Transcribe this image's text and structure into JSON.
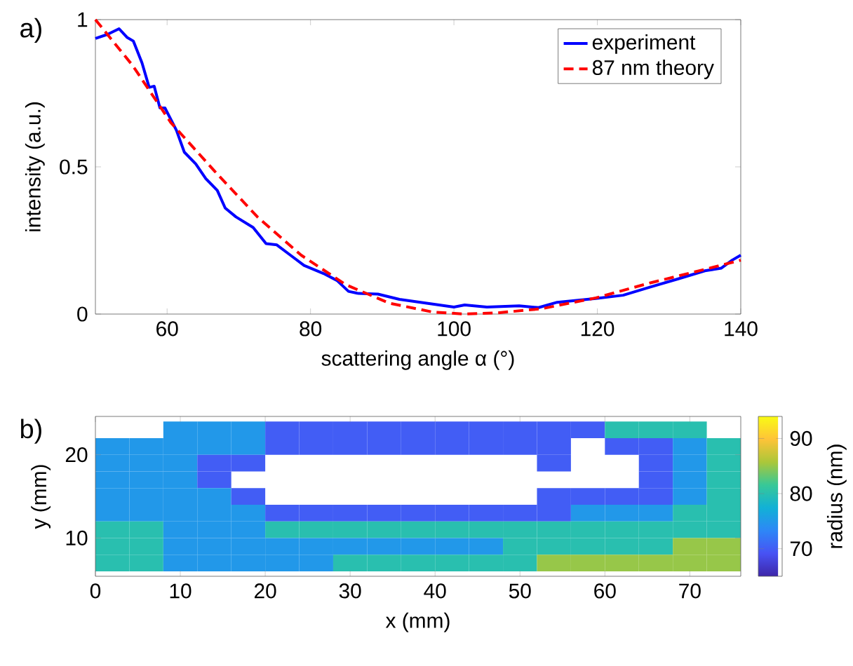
{
  "chart_data": [
    {
      "type": "line",
      "xlabel": "scattering angle α (°)",
      "ylabel": "intensity (a.u.)",
      "xlim": [
        50,
        140
      ],
      "ylim": [
        0,
        1
      ],
      "xticks": [
        60,
        80,
        100,
        120,
        140
      ],
      "yticks": [
        0,
        0.5,
        1
      ],
      "legend": "top right",
      "annotations": [
        "a)"
      ],
      "series": [
        {
          "name": "experiment",
          "color": "#0000ff",
          "line_style": "solid",
          "x": [
            50,
            51.7,
            53.3,
            54.4,
            55.3,
            56.5,
            57.5,
            58.2,
            59,
            59.7,
            61.3,
            62.4,
            64,
            65.4,
            67,
            68.1,
            69.6,
            72,
            73.8,
            75.3,
            77.2,
            79.1,
            81.8,
            83.7,
            85.3,
            86.7,
            89.4,
            92.4,
            96.2,
            100,
            101.5,
            104.6,
            109.1,
            111.8,
            114.4,
            119.8,
            123.6,
            127.4,
            131.2,
            135,
            137.3,
            138.8,
            140
          ],
          "values": [
            0.936,
            0.95,
            0.969,
            0.94,
            0.927,
            0.853,
            0.77,
            0.774,
            0.7,
            0.7,
            0.624,
            0.55,
            0.51,
            0.46,
            0.42,
            0.36,
            0.33,
            0.294,
            0.239,
            0.235,
            0.2,
            0.165,
            0.138,
            0.114,
            0.077,
            0.07,
            0.068,
            0.05,
            0.037,
            0.024,
            0.031,
            0.024,
            0.028,
            0.022,
            0.04,
            0.053,
            0.064,
            0.092,
            0.119,
            0.147,
            0.156,
            0.183,
            0.2
          ]
        },
        {
          "name": "87 nm theory",
          "color": "#ff0000",
          "line_style": "dashed",
          "x": [
            50,
            55.2,
            60.5,
            66.6,
            72.6,
            78.7,
            84.9,
            91,
            97,
            101.5,
            106,
            112.2,
            119.8,
            127.4,
            135,
            140
          ],
          "values": [
            1.0,
            0.844,
            0.651,
            0.486,
            0.33,
            0.2,
            0.1,
            0.037,
            0.007,
            0.0,
            0.004,
            0.018,
            0.055,
            0.106,
            0.152,
            0.183
          ]
        }
      ]
    },
    {
      "type": "heatmap",
      "xlabel": "x (mm)",
      "ylabel": "y (mm)",
      "clabel": "radius (nm)",
      "xlim": [
        0,
        76
      ],
      "ylim": [
        5.4,
        24.6
      ],
      "xticks": [
        0,
        10,
        20,
        30,
        40,
        50,
        60,
        70
      ],
      "yticks": [
        10,
        20
      ],
      "clim": [
        65,
        94
      ],
      "cticks": [
        70,
        80,
        90
      ],
      "annotations": [
        "b)"
      ],
      "x": [
        2,
        6,
        10,
        14,
        18,
        22,
        26,
        30,
        34,
        38,
        42,
        46,
        50,
        54,
        58,
        62,
        66,
        70,
        74
      ],
      "y": [
        23,
        21,
        19,
        17,
        15,
        13,
        11,
        9,
        7
      ],
      "cells": [
        [
          null,
          null,
          75,
          75,
          75,
          70,
          70,
          70,
          70,
          70,
          70,
          70,
          70,
          70,
          70,
          80,
          80,
          80,
          null
        ],
        [
          75,
          75,
          75,
          75,
          75,
          70,
          70,
          70,
          70,
          70,
          70,
          70,
          70,
          70,
          null,
          70,
          70,
          75,
          80
        ],
        [
          75,
          75,
          75,
          70,
          70,
          null,
          null,
          null,
          null,
          null,
          null,
          null,
          null,
          70,
          null,
          null,
          70,
          75,
          80
        ],
        [
          75,
          75,
          75,
          70,
          null,
          null,
          null,
          null,
          null,
          null,
          null,
          null,
          null,
          null,
          null,
          null,
          70,
          75,
          80
        ],
        [
          75,
          75,
          75,
          75,
          70,
          null,
          null,
          null,
          null,
          null,
          null,
          null,
          null,
          70,
          70,
          70,
          70,
          75,
          80
        ],
        [
          75,
          75,
          75,
          75,
          75,
          70,
          70,
          70,
          70,
          70,
          70,
          70,
          70,
          70,
          75,
          75,
          75,
          80,
          80
        ],
        [
          80,
          80,
          75,
          75,
          75,
          80,
          80,
          80,
          80,
          80,
          80,
          80,
          80,
          80,
          80,
          80,
          80,
          80,
          80
        ],
        [
          80,
          80,
          75,
          75,
          75,
          75,
          75,
          75,
          75,
          75,
          75,
          75,
          80,
          80,
          80,
          80,
          80,
          85,
          85
        ],
        [
          80,
          80,
          75,
          75,
          75,
          75,
          75,
          80,
          80,
          80,
          80,
          80,
          80,
          85,
          85,
          85,
          85,
          85,
          85
        ]
      ]
    }
  ]
}
